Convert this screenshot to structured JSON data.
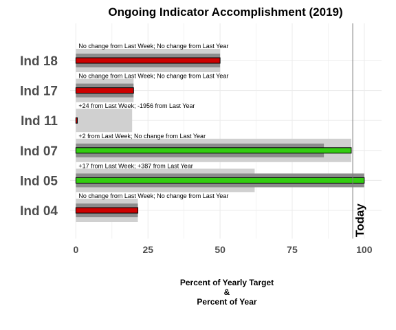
{
  "chart_data": {
    "type": "bar",
    "title": "Ongoing Indicator Accomplishment (2019)",
    "xlabel_lines": [
      "Percent of Yearly Target",
      "&",
      "Percent of Year"
    ],
    "xlim": [
      -2,
      106
    ],
    "xticks": [
      0,
      25,
      50,
      75,
      100
    ],
    "today": {
      "label": "Today",
      "value": 96
    },
    "categories": [
      "Ind 18",
      "Ind 17",
      "Ind 11",
      "Ind 07",
      "Ind 05",
      "Ind 04"
    ],
    "series": [
      {
        "name": "Percent of Year",
        "values": [
          50,
          20,
          19.5,
          95.5,
          62,
          21.5
        ]
      },
      {
        "name": "Last Week",
        "values": [
          50,
          20,
          0,
          86,
          100,
          21.5
        ]
      },
      {
        "name": "Percent of Yearly Target",
        "values": [
          50,
          20,
          0.5,
          95.5,
          100,
          21.5
        ]
      }
    ],
    "bar_status": [
      "red",
      "red",
      "red",
      "green",
      "green",
      "red"
    ],
    "annotations": [
      "No change from Last Week; No change from Last Year",
      "No change from Last Week; No change from Last Year",
      "+24 from Last Week; -1956 from Last Year",
      "+2 from Last Week; No change from Last Year",
      "+17 from Last Week; +387 from Last Year",
      "No change from Last Week; No change from Last Year"
    ],
    "colors": {
      "year_bar": "#d0d0d0",
      "last_week_bar": "#8c8c8c",
      "red": "#cc0000",
      "green": "#33cc11",
      "grid": "#ebebeb",
      "today_line": "#7f7f7f"
    }
  }
}
